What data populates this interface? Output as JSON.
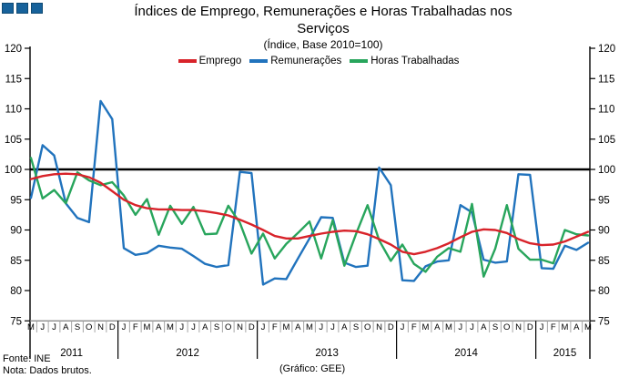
{
  "logo": {
    "color": "#17629B",
    "border_color": "#104a73",
    "squares": 3
  },
  "title": {
    "line1": "Índices de Emprego, Remunerações e Horas Trabalhadas nos",
    "line2": "Serviços",
    "subtitle": "(Índice, Base 2010=100)"
  },
  "legend": {
    "position": "top",
    "items": [
      {
        "label": "Emprego",
        "color": "#D8232A"
      },
      {
        "label": "Remunerações",
        "color": "#2173BD"
      },
      {
        "label": "Horas Trabalhadas",
        "color": "#28A55C"
      }
    ]
  },
  "footer": {
    "source": "Fonte: INE",
    "note": "Nota: Dados brutos.",
    "credit": "(Gráfico: GEE)"
  },
  "chart_data": {
    "type": "line",
    "title": "Índices de Emprego, Remunerações e Horas Trabalhadas nos Serviços",
    "subtitle": "(Índice, Base 2010=100)",
    "ylim": [
      75,
      120
    ],
    "y_ticks": [
      75,
      80,
      85,
      90,
      95,
      100,
      105,
      110,
      115,
      120
    ],
    "reference_line": 100,
    "grid": "off",
    "legend_position": "top",
    "months": [
      "M",
      "J",
      "J",
      "A",
      "S",
      "O",
      "N",
      "D",
      "J",
      "F",
      "M",
      "A",
      "M",
      "J",
      "J",
      "A",
      "S",
      "O",
      "N",
      "D",
      "J",
      "F",
      "M",
      "A",
      "M",
      "J",
      "J",
      "A",
      "S",
      "O",
      "N",
      "D",
      "J",
      "F",
      "M",
      "A",
      "M",
      "J",
      "J",
      "A",
      "S",
      "O",
      "N",
      "D",
      "J",
      "F",
      "M",
      "A",
      "M"
    ],
    "year_groups": [
      {
        "year": "2011",
        "months": 8
      },
      {
        "year": "2012",
        "months": 12
      },
      {
        "year": "2013",
        "months": 12
      },
      {
        "year": "2014",
        "months": 12
      },
      {
        "year": "2015",
        "months": 5
      }
    ],
    "series": [
      {
        "name": "Emprego",
        "slug": "emprego",
        "color": "#D8232A",
        "values": [
          98.4,
          98.9,
          99.2,
          99.3,
          99.2,
          98.7,
          97.8,
          96.4,
          95.0,
          94.1,
          93.6,
          93.4,
          93.4,
          93.3,
          93.3,
          93.1,
          92.8,
          92.4,
          91.7,
          90.9,
          90.0,
          89.0,
          88.6,
          88.6,
          89.0,
          89.4,
          89.7,
          89.9,
          89.8,
          89.3,
          88.5,
          87.6,
          86.4,
          86.0,
          86.4,
          87.0,
          87.8,
          88.8,
          89.7,
          90.1,
          90.0,
          89.5,
          88.5,
          87.8,
          87.5,
          87.6,
          88.1,
          88.9,
          89.7
        ]
      },
      {
        "name": "Remunerações",
        "slug": "remuneracoes",
        "color": "#2173BD",
        "values": [
          95.3,
          104.0,
          102.3,
          94.4,
          92.0,
          91.3,
          111.3,
          108.3,
          87.0,
          85.9,
          86.2,
          87.4,
          87.1,
          86.9,
          85.7,
          84.4,
          83.9,
          84.2,
          99.6,
          99.4,
          81.0,
          82.0,
          81.9,
          85.3,
          88.6,
          92.1,
          92.0,
          84.6,
          83.9,
          84.1,
          100.3,
          97.4,
          81.7,
          81.6,
          84.0,
          84.8,
          85.0,
          94.1,
          92.9,
          85.1,
          84.6,
          84.8,
          99.2,
          99.1,
          83.7,
          83.6,
          87.4,
          86.7,
          87.9
        ]
      },
      {
        "name": "Horas Trabalhadas",
        "slug": "horas-trabalhadas",
        "color": "#28A55C",
        "values": [
          101.9,
          95.2,
          96.6,
          94.4,
          99.5,
          98.2,
          97.4,
          97.9,
          95.7,
          92.5,
          95.1,
          89.2,
          94.0,
          91.0,
          93.8,
          89.3,
          89.4,
          94.0,
          91.2,
          86.1,
          89.4,
          85.3,
          87.7,
          89.5,
          91.4,
          85.3,
          91.6,
          84.1,
          89.3,
          94.1,
          88.3,
          84.9,
          87.6,
          84.4,
          83.1,
          85.6,
          87.0,
          86.4,
          94.3,
          82.3,
          86.9,
          94.1,
          86.9,
          85.1,
          85.1,
          84.5,
          90.0,
          89.3,
          89.1
        ]
      }
    ]
  }
}
